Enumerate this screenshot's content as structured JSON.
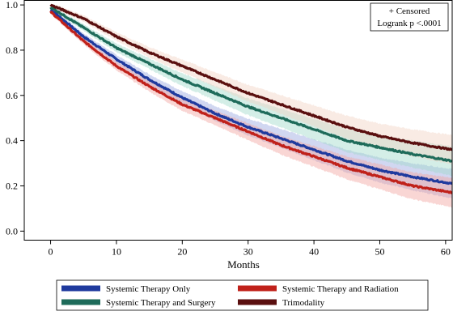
{
  "chart_data": {
    "type": "line",
    "title": "",
    "xlabel": "Months",
    "ylabel": "",
    "xlim": [
      -4,
      61
    ],
    "ylim": [
      -0.04,
      1.02
    ],
    "x_ticks": [
      0,
      10,
      20,
      30,
      40,
      50,
      60
    ],
    "x_tick_labels": [
      "0",
      "10",
      "20",
      "30",
      "40",
      "50",
      "60"
    ],
    "y_ticks": [
      0.0,
      0.2,
      0.4,
      0.6,
      0.8,
      1.0
    ],
    "y_tick_labels": [
      "0.0",
      "0.2",
      "0.4",
      "0.6",
      "0.8",
      "1.0"
    ],
    "grid": false,
    "annotation": {
      "lines": [
        "+ Censored",
        "Logrank p <.0001"
      ],
      "placement": "top-right"
    },
    "legend_placement": "bottom-outside",
    "series": [
      {
        "name": "Systemic Therapy Only",
        "color": "#1f3a9e",
        "band_color": "#9aa6e0",
        "x": [
          0,
          5,
          10,
          15,
          20,
          25,
          30,
          35,
          40,
          45,
          50,
          55,
          61
        ],
        "y": [
          0.98,
          0.86,
          0.76,
          0.67,
          0.59,
          0.52,
          0.46,
          0.41,
          0.36,
          0.31,
          0.27,
          0.24,
          0.21
        ]
      },
      {
        "name": "Systemic Therapy and Radiation",
        "color": "#c0211a",
        "band_color": "#f2a5a0",
        "x": [
          0,
          5,
          10,
          15,
          20,
          25,
          30,
          35,
          40,
          45,
          50,
          55,
          61
        ],
        "y": [
          0.97,
          0.84,
          0.73,
          0.64,
          0.56,
          0.5,
          0.44,
          0.38,
          0.33,
          0.28,
          0.24,
          0.2,
          0.17
        ]
      },
      {
        "name": "Systemic Therapy and Surgery",
        "color": "#1e6b5a",
        "band_color": "#9fd9c9",
        "x": [
          0,
          5,
          10,
          15,
          20,
          25,
          30,
          35,
          40,
          45,
          50,
          55,
          61
        ],
        "y": [
          0.99,
          0.9,
          0.81,
          0.74,
          0.67,
          0.61,
          0.55,
          0.5,
          0.45,
          0.4,
          0.37,
          0.34,
          0.31
        ]
      },
      {
        "name": "Trimodality",
        "color": "#5a0f0f",
        "band_color": "#f2d2c4",
        "x": [
          0,
          5,
          10,
          15,
          20,
          25,
          30,
          35,
          40,
          45,
          50,
          55,
          61
        ],
        "y": [
          1.0,
          0.94,
          0.86,
          0.79,
          0.73,
          0.67,
          0.61,
          0.56,
          0.51,
          0.46,
          0.42,
          0.39,
          0.36
        ]
      }
    ],
    "legend_order": [
      [
        "Systemic Therapy Only",
        "Systemic Therapy and Radiation"
      ],
      [
        "Systemic Therapy and Surgery",
        "Trimodality"
      ]
    ]
  }
}
